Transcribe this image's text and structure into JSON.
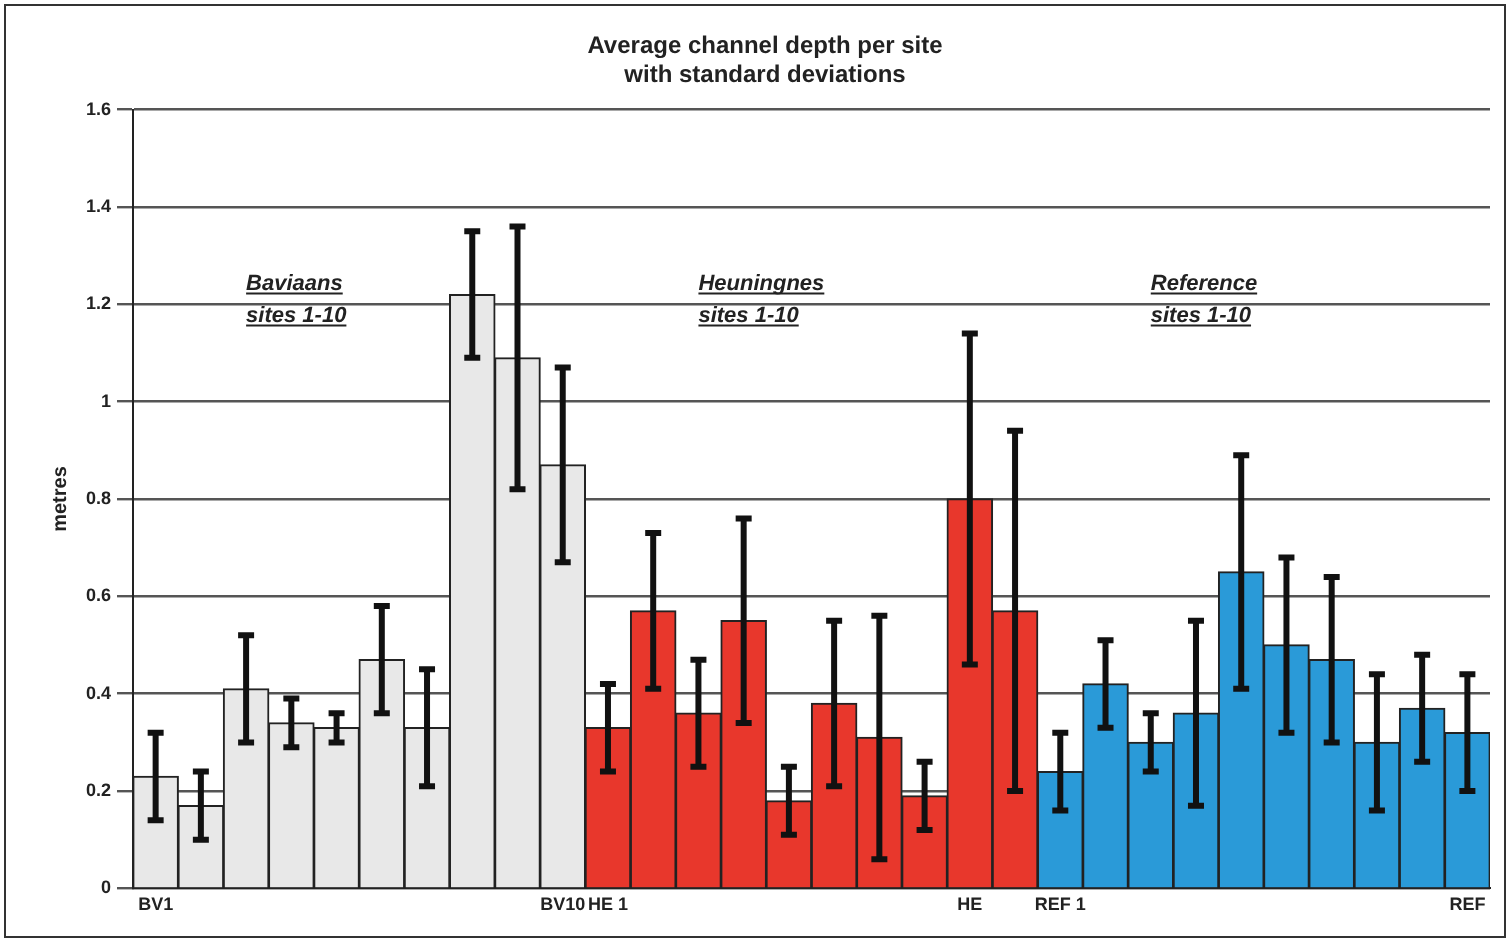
{
  "chart_data": {
    "type": "bar",
    "title": "Average channel depth per site",
    "subtitle": "with standard deviations",
    "ylabel": "metres",
    "categories": [
      "BV1",
      null,
      null,
      null,
      null,
      null,
      null,
      null,
      null,
      "BV10",
      "HE 1",
      null,
      null,
      null,
      null,
      null,
      null,
      null,
      "HE",
      null,
      "REF 1",
      null,
      null,
      null,
      null,
      null,
      null,
      null,
      null,
      "REF"
    ],
    "values": [
      0.23,
      0.17,
      0.41,
      0.34,
      0.33,
      0.47,
      0.33,
      1.22,
      1.09,
      0.87,
      0.33,
      0.57,
      0.36,
      0.55,
      0.18,
      0.38,
      0.31,
      0.19,
      0.8,
      0.57,
      0.24,
      0.42,
      0.3,
      0.36,
      0.65,
      0.5,
      0.47,
      0.3,
      0.37,
      0.32
    ],
    "errors": [
      0.09,
      0.07,
      0.11,
      0.05,
      0.03,
      0.11,
      0.12,
      0.13,
      0.27,
      0.2,
      0.09,
      0.16,
      0.11,
      0.21,
      0.07,
      0.17,
      0.25,
      0.07,
      0.34,
      0.37,
      0.08,
      0.09,
      0.06,
      0.19,
      0.24,
      0.18,
      0.17,
      0.14,
      0.11,
      0.12
    ],
    "colors": [
      "#e8e8e8",
      "#e8e8e8",
      "#e8e8e8",
      "#e8e8e8",
      "#e8e8e8",
      "#e8e8e8",
      "#e8e8e8",
      "#e8e8e8",
      "#e8e8e8",
      "#e8e8e8",
      "#e8372c",
      "#e8372c",
      "#e8372c",
      "#e8372c",
      "#e8372c",
      "#e8372c",
      "#e8372c",
      "#e8372c",
      "#e8372c",
      "#e8372c",
      "#2a9ad8",
      "#2a9ad8",
      "#2a9ad8",
      "#2a9ad8",
      "#2a9ad8",
      "#2a9ad8",
      "#2a9ad8",
      "#2a9ad8",
      "#2a9ad8",
      "#2a9ad8"
    ],
    "ylim": [
      0,
      1.6
    ],
    "yticks": [
      0,
      0.2,
      0.4,
      0.6,
      0.8,
      1,
      1.2,
      1.4,
      1.6
    ],
    "grid": "y",
    "legend": false,
    "annotations": [
      "Baviaans\nsites 1-10",
      "Heuningnes\nsites 1-10",
      "Reference\nsites 1-10"
    ]
  }
}
